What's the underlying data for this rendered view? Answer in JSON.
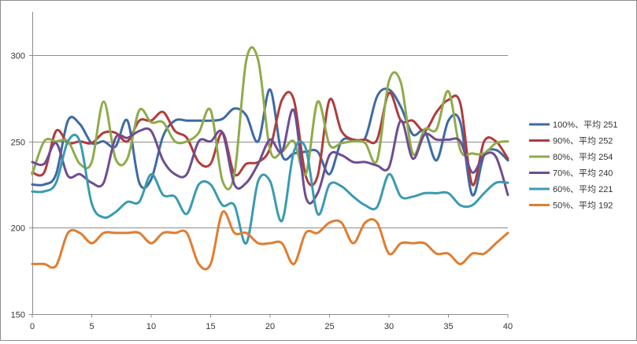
{
  "chart_data": {
    "type": "line",
    "title": "",
    "xlabel": "",
    "ylabel": "",
    "xlim": [
      0,
      40
    ],
    "ylim": [
      150,
      325
    ],
    "x_ticks": [
      0,
      5,
      10,
      15,
      20,
      25,
      30,
      35,
      40
    ],
    "y_ticks": [
      150,
      200,
      250,
      300
    ],
    "grid": "horizontal",
    "legend_position": "right",
    "x": [
      0,
      1,
      2,
      3,
      4,
      5,
      6,
      7,
      8,
      9,
      10,
      11,
      12,
      13,
      14,
      15,
      16,
      17,
      18,
      19,
      20,
      21,
      22,
      23,
      24,
      25,
      26,
      27,
      28,
      29,
      30,
      31,
      32,
      33,
      34,
      35,
      36,
      37,
      38,
      39,
      40
    ],
    "series": [
      {
        "name": "100%、平均 251",
        "color": "#3e6aa6",
        "values": [
          225,
          225,
          231,
          262,
          260,
          249,
          250,
          247,
          262,
          226,
          228,
          253,
          262,
          262,
          262,
          262,
          263,
          269,
          265,
          250,
          280,
          242,
          243,
          244,
          244,
          231,
          250,
          251,
          252,
          276,
          280,
          270,
          254,
          256,
          239,
          262,
          261,
          219,
          242,
          245,
          239
        ]
      },
      {
        "name": "90%、平均 252",
        "color": "#b03c3c",
        "values": [
          232,
          232,
          256,
          249,
          250,
          249,
          255,
          255,
          250,
          262,
          262,
          267,
          256,
          252,
          238,
          237,
          255,
          231,
          237,
          238,
          246,
          274,
          274,
          230,
          230,
          274,
          256,
          251,
          251,
          251,
          278,
          262,
          262,
          256,
          267,
          274,
          272,
          225,
          250,
          250,
          240
        ]
      },
      {
        "name": "80%、平均 254",
        "color": "#8fab4a",
        "values": [
          231,
          250,
          250,
          250,
          237,
          238,
          273,
          240,
          240,
          268,
          261,
          261,
          250,
          250,
          255,
          268,
          227,
          231,
          297,
          297,
          245,
          244,
          250,
          231,
          273,
          248,
          249,
          250,
          249,
          239,
          285,
          284,
          243,
          257,
          257,
          279,
          245,
          243,
          243,
          249,
          250
        ]
      },
      {
        "name": "70%、平均 240",
        "color": "#6e4d91",
        "values": [
          238,
          237,
          249,
          230,
          231,
          226,
          226,
          252,
          252,
          256,
          256,
          239,
          231,
          231,
          250,
          250,
          255,
          225,
          226,
          237,
          251,
          244,
          268,
          218,
          220,
          242,
          242,
          238,
          238,
          236,
          235,
          262,
          240,
          254,
          251,
          251,
          250,
          232,
          242,
          241,
          219
        ]
      },
      {
        "name": "60%、平均 221",
        "color": "#3a9bb0",
        "values": [
          221,
          221,
          226,
          250,
          250,
          214,
          206,
          209,
          215,
          215,
          231,
          219,
          218,
          208,
          225,
          225,
          213,
          213,
          191,
          227,
          227,
          204,
          244,
          246,
          208,
          225,
          224,
          218,
          213,
          212,
          231,
          218,
          218,
          220,
          220,
          220,
          213,
          213,
          220,
          226,
          226
        ]
      },
      {
        "name": "50%、平均 192",
        "color": "#e07d31",
        "values": [
          179,
          179,
          178,
          197,
          197,
          191,
          197,
          197,
          197,
          197,
          191,
          197,
          197,
          197,
          179,
          179,
          209,
          197,
          197,
          191,
          191,
          191,
          179,
          197,
          197,
          203,
          203,
          191,
          203,
          203,
          185,
          191,
          191,
          191,
          185,
          185,
          179,
          185,
          185,
          191,
          197
        ]
      }
    ]
  }
}
